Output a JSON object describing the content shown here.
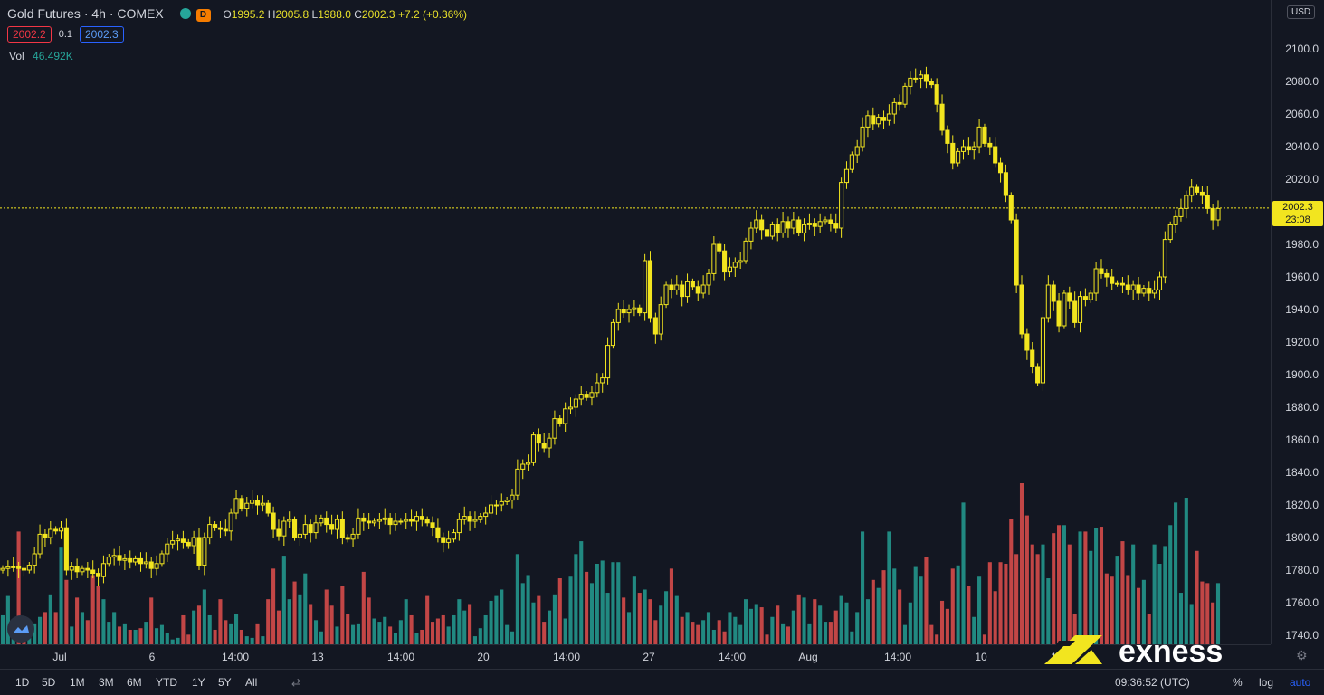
{
  "header": {
    "symbol_title": "Gold Futures · 4h · COMEX",
    "badge_letter": "D",
    "ohlc": {
      "o_label": "O",
      "o": "1995.2",
      "h_label": "H",
      "h": "2005.8",
      "l_label": "L",
      "l": "1988.0",
      "c_label": "C",
      "c": "2002.3",
      "change": "+7.2 (+0.36%)"
    },
    "bid": "2002.2",
    "spread": "0.1",
    "ask": "2002.3",
    "volume_label": "Vol",
    "volume_value": "46.492K"
  },
  "price_scale": {
    "currency": "USD",
    "ticks": [
      "2100.0",
      "2080.0",
      "2060.0",
      "2040.0",
      "2020.0",
      "1980.0",
      "1960.0",
      "1940.0",
      "1920.0",
      "1900.0",
      "1880.0",
      "1860.0",
      "1840.0",
      "1820.0",
      "1800.0",
      "1780.0",
      "1760.0",
      "1740.0"
    ],
    "current_price": "2002.3",
    "countdown": "23:08"
  },
  "time_axis": {
    "labels": [
      "Jul",
      "6",
      "14:00",
      "13",
      "14:00",
      "20",
      "14:00",
      "27",
      "14:00",
      "Aug",
      "14:00",
      "10",
      "14:00"
    ]
  },
  "bottom_bar": {
    "ranges": [
      "1D",
      "5D",
      "1M",
      "3M",
      "6M",
      "YTD",
      "1Y",
      "5Y",
      "All"
    ],
    "clock": "09:36:52 (UTC)",
    "percent": "%",
    "log": "log",
    "auto": "auto"
  },
  "brand": {
    "name": "exness"
  },
  "colors": {
    "bg": "#131722",
    "candle": "#f2e51f",
    "vol_up": "#26a69a",
    "vol_down": "#ef5350",
    "price_line": "#f2e51f"
  },
  "chart_data": {
    "type": "candlestick",
    "ylim": [
      1740,
      2100
    ],
    "closes": [
      1781,
      1782,
      1782,
      1781,
      1780,
      1783,
      1790,
      1802,
      1800,
      1805,
      1804,
      1806,
      1780,
      1782,
      1779,
      1781,
      1780,
      1778,
      1776,
      1784,
      1788,
      1789,
      1786,
      1787,
      1785,
      1787,
      1784,
      1785,
      1781,
      1784,
      1790,
      1796,
      1798,
      1799,
      1797,
      1795,
      1800,
      1783,
      1800,
      1808,
      1806,
      1805,
      1804,
      1815,
      1824,
      1818,
      1821,
      1823,
      1820,
      1821,
      1815,
      1805,
      1801,
      1810,
      1811,
      1800,
      1802,
      1808,
      1803,
      1809,
      1812,
      1808,
      1805,
      1811,
      1800,
      1799,
      1802,
      1812,
      1810,
      1809,
      1810,
      1811,
      1812,
      1808,
      1810,
      1810,
      1811,
      1810,
      1813,
      1811,
      1809,
      1806,
      1800,
      1797,
      1799,
      1803,
      1811,
      1813,
      1810,
      1811,
      1813,
      1815,
      1820,
      1820,
      1822,
      1823,
      1826,
      1842,
      1845,
      1846,
      1863,
      1858,
      1855,
      1861,
      1873,
      1870,
      1879,
      1880,
      1885,
      1888,
      1886,
      1889,
      1895,
      1898,
      1918,
      1932,
      1940,
      1938,
      1940,
      1941,
      1938,
      1970,
      1935,
      1925,
      1943,
      1955,
      1952,
      1955,
      1948,
      1957,
      1954,
      1950,
      1955,
      1962,
      1980,
      1976,
      1963,
      1966,
      1969,
      1970,
      1982,
      1990,
      1995,
      1989,
      1985,
      1992,
      1987,
      1994,
      1990,
      1995,
      1987,
      1992,
      1993,
      1991,
      1994,
      1995,
      1993,
      1990,
      2018,
      2026,
      2035,
      2040,
      2052,
      2059,
      2054,
      2058,
      2056,
      2060,
      2067,
      2066,
      2077,
      2082,
      2082,
      2084,
      2080,
      2078,
      2066,
      2050,
      2042,
      2030,
      2037,
      2040,
      2038,
      2040,
      2052,
      2042,
      2040,
      2030,
      2024,
      2010,
      1995,
      1955,
      1925,
      1915,
      1905,
      1895,
      1935,
      1955,
      1945,
      1930,
      1950,
      1945,
      1932,
      1948,
      1946,
      1950,
      1965,
      1962,
      1960,
      1956,
      1956,
      1955,
      1952,
      1955,
      1950,
      1953,
      1950,
      1952,
      1960,
      1983,
      1992,
      1997,
      2002,
      2010,
      2015,
      2012,
      2010,
      2002,
      1995,
      2002
    ],
    "vol_fractions": [
      0.18,
      0.3,
      0.07,
      0.7,
      0.1,
      0.11,
      0.13,
      0.17,
      0.2,
      0.31,
      0.2,
      0.6,
      0.4,
      0.11,
      0.29,
      0.2,
      0.15,
      0.43,
      0.36,
      0.28,
      0.14,
      0.2,
      0.11,
      0.13,
      0.09,
      0.09,
      0.1,
      0.14,
      0.29,
      0.1,
      0.12,
      0.07,
      0.03,
      0.04,
      0.18,
      0.06,
      0.21,
      0.24,
      0.34,
      0.18,
      0.09,
      0.28,
      0.15,
      0.13,
      0.19,
      0.09,
      0.05,
      0.04,
      0.13,
      0.05,
      0.28,
      0.47,
      0.21,
      0.55,
      0.28,
      0.39,
      0.31,
      0.44,
      0.25,
      0.15,
      0.08,
      0.34,
      0.24,
      0.11,
      0.36,
      0.19,
      0.12,
      0.13,
      0.45,
      0.29,
      0.16,
      0.14,
      0.17,
      0.11,
      0.07,
      0.15,
      0.28,
      0.18,
      0.07,
      0.09,
      0.3,
      0.14,
      0.16,
      0.18,
      0.11,
      0.18,
      0.28,
      0.21,
      0.25,
      0.05,
      0.1,
      0.18,
      0.27,
      0.3,
      0.34,
      0.12,
      0.08,
      0.56,
      0.38,
      0.43,
      0.26,
      0.3,
      0.14,
      0.21,
      0.31,
      0.41,
      0.16,
      0.42,
      0.56,
      0.64,
      0.45,
      0.38,
      0.5,
      0.52,
      0.32,
      0.51,
      0.51,
      0.29,
      0.2,
      0.42,
      0.32,
      0.34,
      0.28,
      0.15,
      0.24,
      0.33,
      0.47,
      0.3,
      0.17,
      0.2,
      0.14,
      0.12,
      0.15,
      0.2,
      0.09,
      0.15,
      0.08,
      0.2,
      0.17,
      0.12,
      0.28,
      0.22,
      0.25,
      0.23,
      0.06,
      0.17,
      0.24,
      0.13,
      0.11,
      0.21,
      0.31,
      0.29,
      0.13,
      0.28,
      0.24,
      0.14,
      0.14,
      0.21,
      0.3,
      0.26,
      0.08,
      0.2,
      0.7,
      0.28,
      0.4,
      0.35,
      0.46,
      0.7,
      0.47,
      0.34,
      0.12,
      0.26,
      0.48,
      0.42,
      0.54,
      0.12,
      0.06,
      0.27,
      0.22,
      0.47,
      0.49,
      0.88,
      0.36,
      0.17,
      0.42,
      0.06,
      0.51,
      0.33,
      0.51,
      0.5,
      0.78,
      0.56,
      1.0,
      0.8,
      0.62,
      0.56,
      0.62,
      0.41,
      0.69,
      0.74,
      0.74,
      0.62,
      0.19,
      0.7,
      0.7,
      0.58,
      0.72,
      0.73,
      0.44,
      0.42,
      0.55,
      0.64,
      0.43,
      0.62,
      0.35,
      0.4,
      0.19,
      0.62,
      0.5,
      0.61,
      0.74,
      0.88,
      0.32,
      0.91,
      0.25,
      0.58,
      0.39,
      0.38,
      0.26,
      0.38,
      0.2,
      0.05,
      0.4
    ]
  }
}
